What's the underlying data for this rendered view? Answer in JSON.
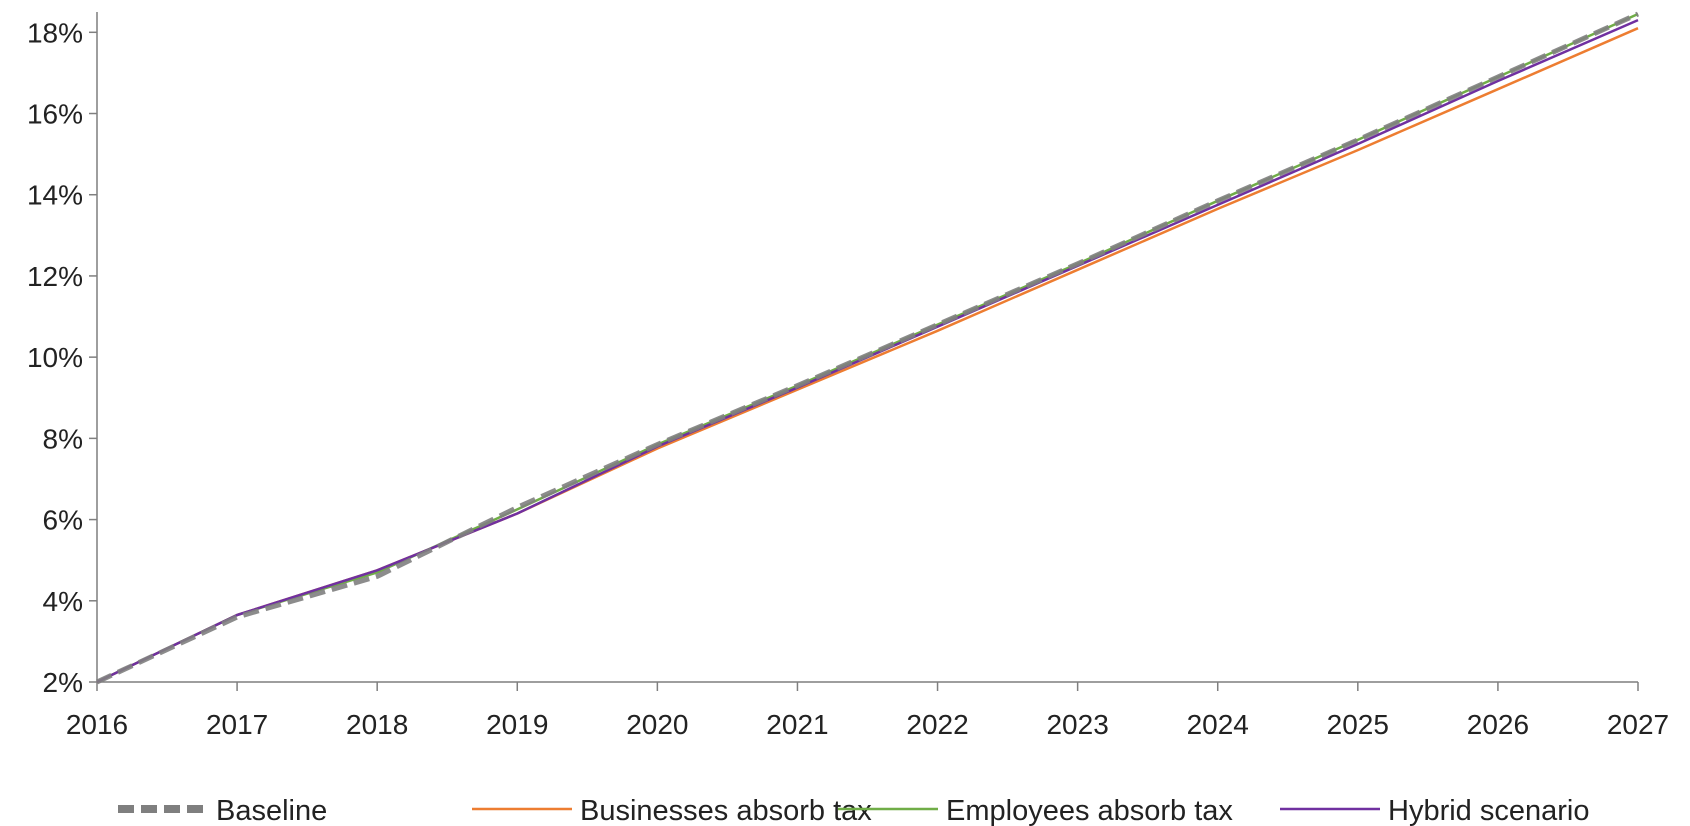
{
  "chart_data": {
    "type": "line",
    "title": "",
    "xlabel": "",
    "ylabel": "",
    "xlim": [
      2016,
      2027
    ],
    "ylim": [
      2,
      18.5
    ],
    "x_ticks": [
      "2016",
      "2017",
      "2018",
      "2019",
      "2020",
      "2021",
      "2022",
      "2023",
      "2024",
      "2025",
      "2026",
      "2027"
    ],
    "y_ticks": [
      {
        "value": 2,
        "label": "2%"
      },
      {
        "value": 4,
        "label": "4%"
      },
      {
        "value": 6,
        "label": "6%"
      },
      {
        "value": 8,
        "label": "8%"
      },
      {
        "value": 10,
        "label": "10%"
      },
      {
        "value": 12,
        "label": "12%"
      },
      {
        "value": 14,
        "label": "14%"
      },
      {
        "value": 16,
        "label": "16%"
      },
      {
        "value": 18,
        "label": "18%"
      }
    ],
    "grid": false,
    "legend_position": "bottom",
    "series": [
      {
        "name": "Baseline",
        "color": "#7f7f7f",
        "style": "dashed",
        "x": [
          2016,
          2017,
          2018,
          2019,
          2020,
          2021,
          2022,
          2023,
          2024,
          2025,
          2026,
          2027
        ],
        "y": [
          2.0,
          3.6,
          4.6,
          6.3,
          7.85,
          9.3,
          10.8,
          12.3,
          13.85,
          15.35,
          16.9,
          18.45
        ]
      },
      {
        "name": "Businesses absorb tax",
        "color": "#ed7d31",
        "style": "solid",
        "x": [
          2016,
          2017,
          2018,
          2019,
          2020,
          2021,
          2022,
          2023,
          2024,
          2025,
          2026,
          2027
        ],
        "y": [
          2.0,
          3.65,
          4.75,
          6.15,
          7.75,
          9.2,
          10.65,
          12.15,
          13.65,
          15.1,
          16.6,
          18.1
        ]
      },
      {
        "name": "Employees absorb tax",
        "color": "#70ad47",
        "style": "solid",
        "x": [
          2016,
          2017,
          2018,
          2019,
          2020,
          2021,
          2022,
          2023,
          2024,
          2025,
          2026,
          2027
        ],
        "y": [
          2.0,
          3.65,
          4.7,
          6.25,
          7.85,
          9.3,
          10.8,
          12.3,
          13.85,
          15.35,
          16.9,
          18.45
        ]
      },
      {
        "name": "Hybrid scenario",
        "color": "#7030a0",
        "style": "solid",
        "x": [
          2016,
          2017,
          2018,
          2019,
          2020,
          2021,
          2022,
          2023,
          2024,
          2025,
          2026,
          2027
        ],
        "y": [
          2.0,
          3.65,
          4.75,
          6.15,
          7.8,
          9.25,
          10.75,
          12.25,
          13.75,
          15.25,
          16.8,
          18.3
        ]
      }
    ]
  }
}
